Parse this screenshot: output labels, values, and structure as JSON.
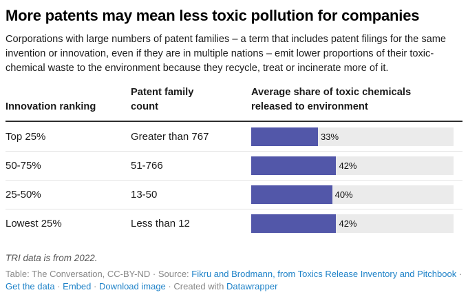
{
  "header": {
    "title": "More patents may mean less toxic pollution for companies",
    "description": "Corporations with large numbers of patent families – a term that includes patent filings for the same invention or innovation, even if they are in multiple nations – emit lower proportions of their toxic-chemical waste to the environment because they recycle, treat or incinerate more of it."
  },
  "table": {
    "columns": [
      "Innovation ranking",
      "Patent family count",
      "Average share of toxic chemicals released to environment"
    ],
    "rows": [
      {
        "ranking": "Top 25%",
        "patent_count": "Greater than 767",
        "value": 33,
        "value_label": "33%"
      },
      {
        "ranking": "50-75%",
        "patent_count": "51-766",
        "value": 42,
        "value_label": "42%"
      },
      {
        "ranking": "25-50%",
        "patent_count": "13-50",
        "value": 40,
        "value_label": "40%"
      },
      {
        "ranking": "Lowest 25%",
        "patent_count": "Less than 12",
        "value": 42,
        "value_label": "42%"
      }
    ]
  },
  "chart_data": {
    "type": "bar",
    "orientation": "horizontal",
    "title": "More patents may mean less toxic pollution for companies",
    "categories": [
      "Top 25%",
      "50-75%",
      "25-50%",
      "Lowest 25%"
    ],
    "category_label": "Innovation ranking",
    "secondary_column": {
      "label": "Patent family count",
      "values": [
        "Greater than 767",
        "51-766",
        "13-50",
        "Less than 12"
      ]
    },
    "series": [
      {
        "name": "Average share of toxic chemicals released to environment",
        "values": [
          33,
          42,
          40,
          42
        ]
      }
    ],
    "value_suffix": "%",
    "xlim": [
      0,
      100
    ],
    "grid": false,
    "legend_position": "none"
  },
  "note": "TRI data is from 2022.",
  "footer": {
    "credit": "Table: The Conversation, CC-BY-ND",
    "bullet": "·",
    "source_label": "Source:",
    "source_link_text": "Fikru and Brodmann, from Toxics Release Inventory and Pitchbook",
    "get_data_label": "Get the data",
    "embed_label": "Embed",
    "download_label": "Download image",
    "created_with_label": "Created with",
    "tool_link_text": "Datawrapper"
  },
  "colors": {
    "bar": "#5257a9",
    "bar_track": "#ebebeb",
    "link": "#1e82c8",
    "header_rule": "#2e2e2e",
    "row_rule": "#e3e3e3"
  }
}
